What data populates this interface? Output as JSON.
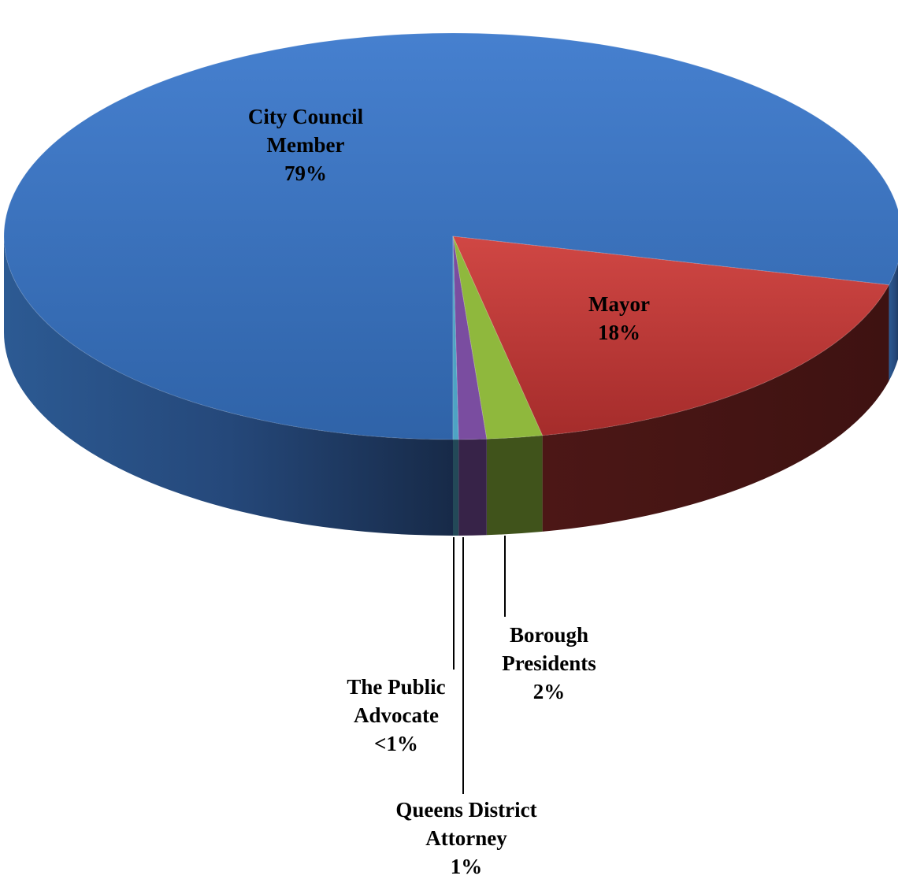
{
  "chart_data": {
    "type": "pie",
    "style": "3d",
    "title": "",
    "slices": [
      {
        "name": "City Council Member",
        "value": 79,
        "display": "79%",
        "color": "#3c72c0"
      },
      {
        "name": "Mayor",
        "value": 18,
        "display": "18%",
        "color": "#c43c3a"
      },
      {
        "name": "Borough Presidents",
        "value": 2,
        "display": "2%",
        "color": "#8fb83d"
      },
      {
        "name": "Queens District Attorney",
        "value": 1,
        "display": "1%",
        "color": "#7a4da0"
      },
      {
        "name": "The Public Advocate",
        "value": 0.2,
        "display": "<1%",
        "color": "#4ea3c4"
      }
    ]
  },
  "labels": {
    "city_council": {
      "line1": "City Council",
      "line2": "Member",
      "pct": "79%"
    },
    "mayor": {
      "line1": "Mayor",
      "pct": "18%"
    },
    "borough": {
      "line1": "Borough",
      "line2": "Presidents",
      "pct": "2%"
    },
    "public_advocate": {
      "line1": "The Public",
      "line2": "Advocate",
      "pct": "<1%"
    },
    "queens_da": {
      "line1": "Queens District",
      "line2": "Attorney",
      "pct": "1%"
    }
  }
}
